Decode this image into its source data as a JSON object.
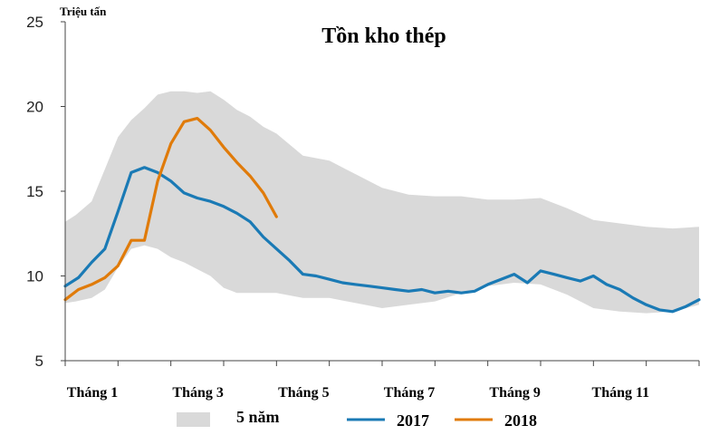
{
  "chart_data": {
    "type": "line",
    "title": "Tồn kho thép",
    "ylabel": "Triệu tấn",
    "xlabel": "",
    "ylim": [
      5,
      25
    ],
    "yticks": [
      5,
      10,
      15,
      20,
      25
    ],
    "xlim": [
      1,
      13
    ],
    "xticks": [
      {
        "value": 1,
        "label": "Tháng 1"
      },
      {
        "value": 3,
        "label": "Tháng 3"
      },
      {
        "value": 5,
        "label": "Tháng 5"
      },
      {
        "value": 7,
        "label": "Tháng 7"
      },
      {
        "value": 9,
        "label": "Tháng 9"
      },
      {
        "value": 11,
        "label": "Tháng 11"
      }
    ],
    "grid": false,
    "legend_position": "bottom",
    "range_band": {
      "name": "5 năm",
      "color": "#d9d9d9",
      "x": [
        1,
        1.2,
        1.5,
        1.75,
        2,
        2.25,
        2.5,
        2.75,
        3,
        3.25,
        3.5,
        3.75,
        4,
        4.25,
        4.5,
        4.75,
        5,
        5.5,
        6,
        6.5,
        7,
        7.5,
        8,
        8.5,
        9,
        9.5,
        10,
        10.25,
        10.5,
        11,
        11.5,
        12,
        12.5,
        13
      ],
      "upper": [
        13.2,
        13.6,
        14.4,
        16.3,
        18.2,
        19.2,
        19.9,
        20.7,
        20.9,
        20.9,
        20.8,
        20.9,
        20.4,
        19.8,
        19.4,
        18.8,
        18.4,
        17.1,
        16.8,
        16.0,
        15.2,
        14.8,
        14.7,
        14.7,
        14.5,
        14.5,
        14.6,
        14.3,
        14.0,
        13.3,
        13.1,
        12.9,
        12.8,
        12.9
      ],
      "lower": [
        8.4,
        8.5,
        8.7,
        9.2,
        10.5,
        11.6,
        11.8,
        11.6,
        11.1,
        10.8,
        10.4,
        10.0,
        9.3,
        9.0,
        9.0,
        9.0,
        9.0,
        8.7,
        8.7,
        8.4,
        8.1,
        8.3,
        8.5,
        9.0,
        9.4,
        9.6,
        9.5,
        9.2,
        8.9,
        8.1,
        7.9,
        7.8,
        7.9,
        8.3
      ]
    },
    "series": [
      {
        "name": "2017",
        "color": "#1a7ab5",
        "x": [
          1,
          1.25,
          1.5,
          1.75,
          2,
          2.25,
          2.5,
          2.75,
          3,
          3.25,
          3.5,
          3.75,
          4,
          4.25,
          4.5,
          4.75,
          5,
          5.25,
          5.5,
          5.75,
          6,
          6.25,
          6.5,
          6.75,
          7,
          7.25,
          7.5,
          7.75,
          8,
          8.25,
          8.5,
          8.75,
          9,
          9.25,
          9.5,
          9.75,
          10,
          10.25,
          10.5,
          10.75,
          11,
          11.25,
          11.5,
          11.75,
          12,
          12.25,
          12.5,
          12.75,
          13
        ],
        "y": [
          9.4,
          9.9,
          10.8,
          11.6,
          13.8,
          16.1,
          16.4,
          16.1,
          15.6,
          14.9,
          14.6,
          14.4,
          14.1,
          13.7,
          13.2,
          12.3,
          11.6,
          10.9,
          10.1,
          10.0,
          9.8,
          9.6,
          9.5,
          9.4,
          9.3,
          9.2,
          9.1,
          9.2,
          9.0,
          9.1,
          9.0,
          9.1,
          9.5,
          9.8,
          10.1,
          9.6,
          10.3,
          10.1,
          9.9,
          9.7,
          10.0,
          9.5,
          9.2,
          8.7,
          8.3,
          8.0,
          7.9,
          8.2,
          8.6
        ]
      },
      {
        "name": "2018",
        "color": "#e07b0a",
        "x": [
          1,
          1.25,
          1.5,
          1.75,
          2,
          2.25,
          2.5,
          2.75,
          3,
          3.25,
          3.5,
          3.75,
          4,
          4.25,
          4.5,
          4.75,
          5
        ],
        "y": [
          8.6,
          9.2,
          9.5,
          9.9,
          10.6,
          12.1,
          12.1,
          15.6,
          17.8,
          19.1,
          19.3,
          18.6,
          17.6,
          16.7,
          15.9,
          14.9,
          13.5
        ]
      }
    ]
  }
}
